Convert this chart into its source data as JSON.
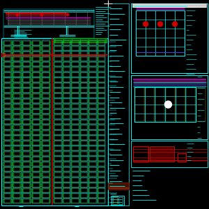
{
  "bg_color": "#000000",
  "cyan": "#00FFFF",
  "red": "#CC0000",
  "green": "#00BB00",
  "yellow": "#AAAA44",
  "magenta": "#CC00CC",
  "white": "#FFFFFF",
  "gray": "#666666",
  "blue": "#4444CC",
  "dark_red": "#882200",
  "orange": "#BB6600",
  "fig_width": 3.0,
  "fig_height": 3.0,
  "dpi": 100
}
